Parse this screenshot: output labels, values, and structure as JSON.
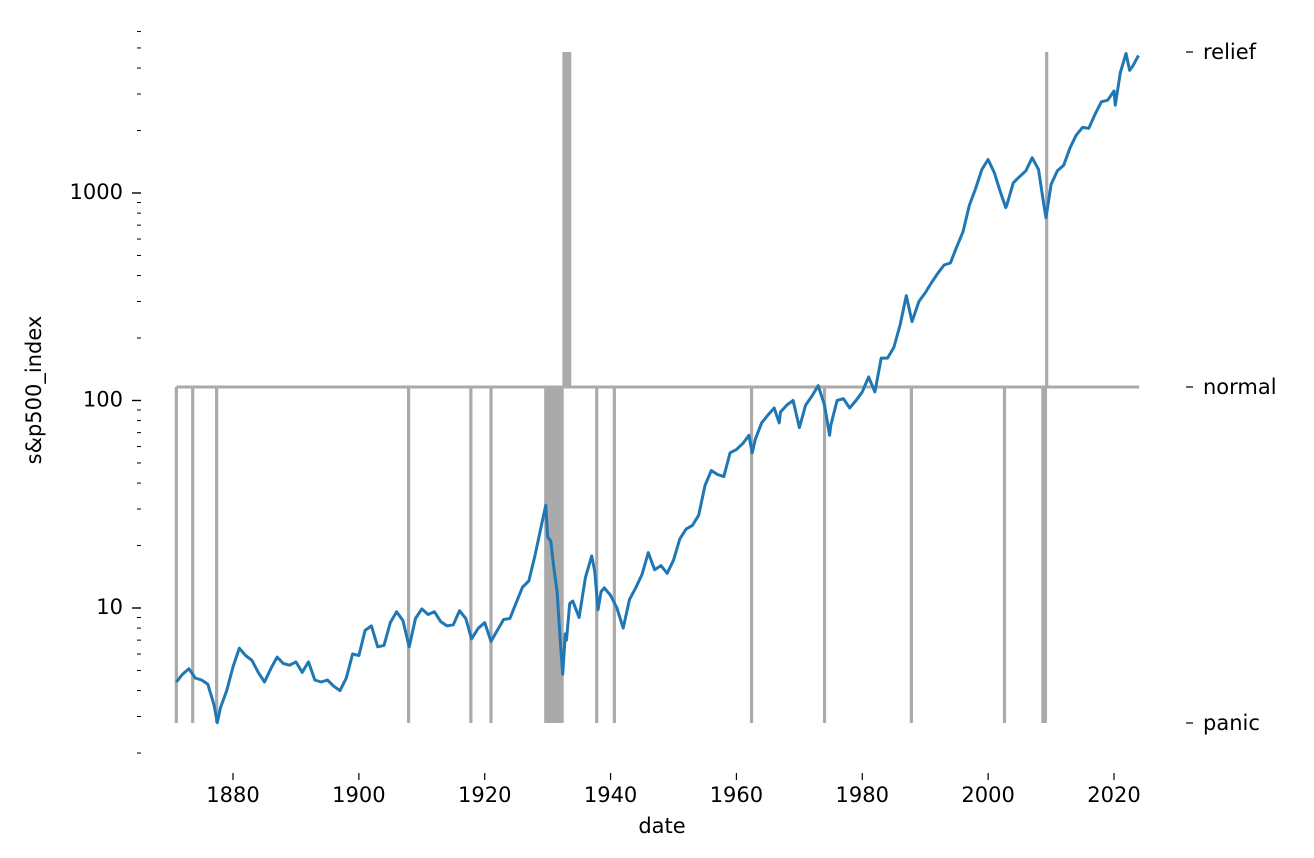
{
  "chart_data": {
    "type": "line",
    "title": "",
    "xlabel": "date",
    "ylabel": "s&p500_index",
    "xlim": [
      1865,
      2028
    ],
    "ylim": [
      2,
      5900
    ],
    "yscale": "log",
    "grid": false,
    "legend": "none",
    "x_ticks": [
      "1880",
      "1900",
      "1920",
      "1940",
      "1960",
      "1980",
      "2000",
      "2020"
    ],
    "y_ticks": [
      "10",
      "100",
      "1000"
    ],
    "right_axis": {
      "ticks": [
        "panic",
        "normal",
        "relief"
      ],
      "values": [
        -1,
        0,
        1
      ]
    },
    "series": [
      {
        "color": "#1f77b4",
        "points": [
          [
            1871.0,
            4.4
          ],
          [
            1872.0,
            4.8
          ],
          [
            1873.0,
            5.1
          ],
          [
            1874.0,
            4.6
          ],
          [
            1875.0,
            4.5
          ],
          [
            1876.0,
            4.3
          ],
          [
            1877.0,
            3.4
          ],
          [
            1877.5,
            2.8
          ],
          [
            1878.0,
            3.3
          ],
          [
            1879.0,
            4.0
          ],
          [
            1880.0,
            5.2
          ],
          [
            1881.0,
            6.4
          ],
          [
            1882.0,
            5.9
          ],
          [
            1883.0,
            5.6
          ],
          [
            1884.0,
            4.9
          ],
          [
            1885.0,
            4.4
          ],
          [
            1886.0,
            5.1
          ],
          [
            1887.0,
            5.8
          ],
          [
            1888.0,
            5.4
          ],
          [
            1889.0,
            5.3
          ],
          [
            1890.0,
            5.5
          ],
          [
            1891.0,
            4.9
          ],
          [
            1892.0,
            5.5
          ],
          [
            1893.0,
            4.5
          ],
          [
            1894.0,
            4.4
          ],
          [
            1895.0,
            4.5
          ],
          [
            1896.0,
            4.2
          ],
          [
            1897.0,
            4.0
          ],
          [
            1898.0,
            4.6
          ],
          [
            1899.0,
            6.0
          ],
          [
            1900.0,
            5.9
          ],
          [
            1901.0,
            7.8
          ],
          [
            1902.0,
            8.2
          ],
          [
            1903.0,
            6.5
          ],
          [
            1904.0,
            6.6
          ],
          [
            1905.0,
            8.5
          ],
          [
            1906.0,
            9.6
          ],
          [
            1907.0,
            8.7
          ],
          [
            1908.0,
            6.5
          ],
          [
            1909.0,
            8.9
          ],
          [
            1910.0,
            9.9
          ],
          [
            1911.0,
            9.3
          ],
          [
            1912.0,
            9.6
          ],
          [
            1913.0,
            8.6
          ],
          [
            1914.0,
            8.2
          ],
          [
            1915.0,
            8.3
          ],
          [
            1916.0,
            9.7
          ],
          [
            1917.0,
            8.9
          ],
          [
            1917.9,
            7.1
          ],
          [
            1919.0,
            8.0
          ],
          [
            1920.0,
            8.5
          ],
          [
            1921.0,
            6.9
          ],
          [
            1922.0,
            7.8
          ],
          [
            1923.0,
            8.8
          ],
          [
            1924.0,
            8.9
          ],
          [
            1925.0,
            10.6
          ],
          [
            1926.0,
            12.6
          ],
          [
            1927.0,
            13.5
          ],
          [
            1928.0,
            18.0
          ],
          [
            1929.0,
            25.0
          ],
          [
            1929.7,
            31.3
          ],
          [
            1930.0,
            22.0
          ],
          [
            1930.5,
            21.0
          ],
          [
            1931.0,
            15.5
          ],
          [
            1931.5,
            12.0
          ],
          [
            1932.0,
            7.0
          ],
          [
            1932.4,
            4.8
          ],
          [
            1932.8,
            7.5
          ],
          [
            1933.0,
            7.0
          ],
          [
            1933.5,
            10.5
          ],
          [
            1934.0,
            10.8
          ],
          [
            1935.0,
            9.0
          ],
          [
            1936.0,
            14.0
          ],
          [
            1937.0,
            17.8
          ],
          [
            1937.5,
            15.0
          ],
          [
            1938.0,
            9.8
          ],
          [
            1938.5,
            12.0
          ],
          [
            1939.0,
            12.5
          ],
          [
            1940.0,
            11.5
          ],
          [
            1941.0,
            10.0
          ],
          [
            1942.0,
            8.0
          ],
          [
            1943.0,
            11.0
          ],
          [
            1944.0,
            12.5
          ],
          [
            1945.0,
            14.5
          ],
          [
            1946.0,
            18.5
          ],
          [
            1947.0,
            15.3
          ],
          [
            1948.0,
            16.0
          ],
          [
            1949.0,
            14.7
          ],
          [
            1950.0,
            17.0
          ],
          [
            1951.0,
            21.5
          ],
          [
            1952.0,
            24.0
          ],
          [
            1953.0,
            25.0
          ],
          [
            1954.0,
            28.0
          ],
          [
            1955.0,
            39.0
          ],
          [
            1956.0,
            46.0
          ],
          [
            1957.0,
            44.0
          ],
          [
            1958.0,
            43.0
          ],
          [
            1959.0,
            56.0
          ],
          [
            1960.0,
            58.0
          ],
          [
            1961.0,
            62.0
          ],
          [
            1962.0,
            68.0
          ],
          [
            1962.5,
            56.0
          ],
          [
            1963.0,
            65.0
          ],
          [
            1964.0,
            78.0
          ],
          [
            1965.0,
            85.0
          ],
          [
            1966.0,
            92.0
          ],
          [
            1966.8,
            78.0
          ],
          [
            1967.0,
            88.0
          ],
          [
            1968.0,
            95.0
          ],
          [
            1969.0,
            100.0
          ],
          [
            1970.0,
            74.0
          ],
          [
            1971.0,
            95.0
          ],
          [
            1972.0,
            105.0
          ],
          [
            1973.0,
            118.0
          ],
          [
            1974.0,
            95.0
          ],
          [
            1974.8,
            68.0
          ],
          [
            1975.0,
            76.0
          ],
          [
            1976.0,
            100.0
          ],
          [
            1977.0,
            102.0
          ],
          [
            1978.0,
            92.0
          ],
          [
            1979.0,
            100.0
          ],
          [
            1980.0,
            110.0
          ],
          [
            1981.0,
            130.0
          ],
          [
            1982.0,
            110.0
          ],
          [
            1983.0,
            160.0
          ],
          [
            1984.0,
            160.0
          ],
          [
            1985.0,
            180.0
          ],
          [
            1986.0,
            230.0
          ],
          [
            1987.0,
            320.0
          ],
          [
            1987.9,
            240.0
          ],
          [
            1989.0,
            300.0
          ],
          [
            1990.0,
            330.0
          ],
          [
            1991.0,
            370.0
          ],
          [
            1992.0,
            410.0
          ],
          [
            1993.0,
            450.0
          ],
          [
            1994.0,
            460.0
          ],
          [
            1995.0,
            550.0
          ],
          [
            1996.0,
            650.0
          ],
          [
            1997.0,
            870.0
          ],
          [
            1998.0,
            1050.0
          ],
          [
            1999.0,
            1300.0
          ],
          [
            2000.0,
            1450.0
          ],
          [
            2001.0,
            1250.0
          ],
          [
            2002.0,
            1000.0
          ],
          [
            2002.8,
            850.0
          ],
          [
            2003.0,
            880.0
          ],
          [
            2004.0,
            1120.0
          ],
          [
            2005.0,
            1200.0
          ],
          [
            2006.0,
            1280.0
          ],
          [
            2007.0,
            1480.0
          ],
          [
            2008.0,
            1300.0
          ],
          [
            2008.8,
            900.0
          ],
          [
            2009.2,
            760.0
          ],
          [
            2010.0,
            1100.0
          ],
          [
            2011.0,
            1280.0
          ],
          [
            2012.0,
            1360.0
          ],
          [
            2013.0,
            1650.0
          ],
          [
            2014.0,
            1900.0
          ],
          [
            2015.0,
            2070.0
          ],
          [
            2016.0,
            2050.0
          ],
          [
            2017.0,
            2400.0
          ],
          [
            2018.0,
            2750.0
          ],
          [
            2019.0,
            2800.0
          ],
          [
            2020.0,
            3100.0
          ],
          [
            2020.2,
            2650.0
          ],
          [
            2021.0,
            3800.0
          ],
          [
            2021.9,
            4700.0
          ],
          [
            2022.5,
            3900.0
          ],
          [
            2023.0,
            4100.0
          ],
          [
            2023.9,
            4600.0
          ]
        ]
      },
      {
        "color": "#aaaaaa",
        "axis": "right",
        "baseline": 0,
        "segments": [
          [
            1871.0,
            -1
          ],
          [
            1873.6,
            -1
          ],
          [
            1877.4,
            -1
          ],
          [
            1907.9,
            -1
          ],
          [
            1917.8,
            -1
          ],
          [
            1921.0,
            -1
          ],
          [
            1929.7,
            -1
          ],
          [
            1929.9,
            -1
          ],
          [
            1930.1,
            -1
          ],
          [
            1930.3,
            -1
          ],
          [
            1930.5,
            -1
          ],
          [
            1930.7,
            -1
          ],
          [
            1930.9,
            -1
          ],
          [
            1931.1,
            -1
          ],
          [
            1931.3,
            -1
          ],
          [
            1931.5,
            -1
          ],
          [
            1931.7,
            -1
          ],
          [
            1931.9,
            -1
          ],
          [
            1932.1,
            -1
          ],
          [
            1932.3,
            -1
          ],
          [
            1932.6,
            1
          ],
          [
            1932.8,
            1
          ],
          [
            1933.0,
            1
          ],
          [
            1933.2,
            1
          ],
          [
            1933.5,
            1
          ],
          [
            1937.8,
            -1
          ],
          [
            1940.6,
            -1
          ],
          [
            1962.4,
            -1
          ],
          [
            1974.0,
            -1
          ],
          [
            1987.8,
            -1
          ],
          [
            2002.6,
            -1
          ],
          [
            2008.7,
            -1
          ],
          [
            2008.9,
            -1
          ],
          [
            2009.1,
            -1
          ],
          [
            2009.3,
            1
          ]
        ],
        "x_end": 2024.0
      }
    ]
  }
}
